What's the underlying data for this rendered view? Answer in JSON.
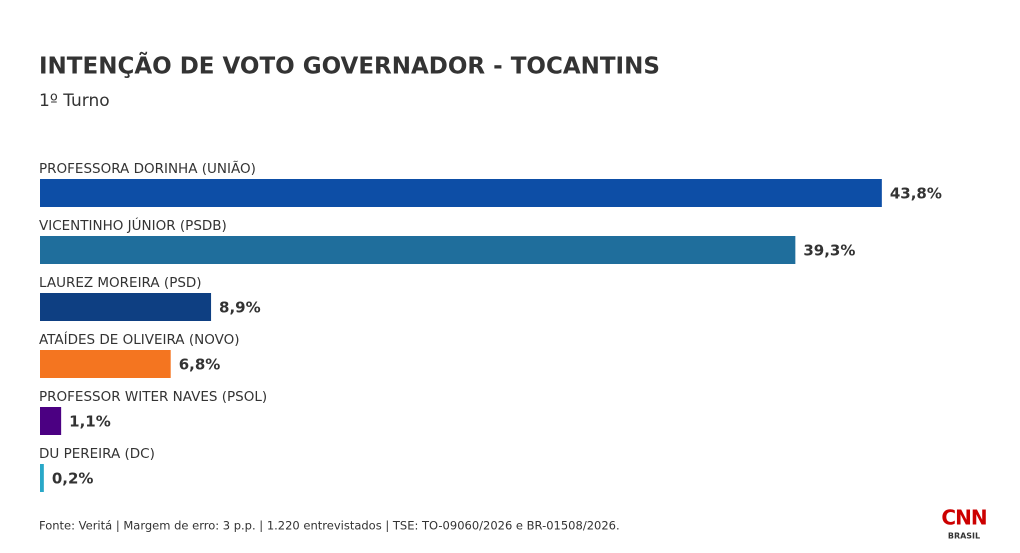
{
  "chart_data": {
    "type": "bar",
    "orientation": "horizontal",
    "title": "INTENÇÃO DE VOTO GOVERNADOR - TOCANTINS",
    "subtitle": "1º Turno",
    "categories": [
      "PROFESSORA DORINHA (UNIÃO)",
      "VICENTINHO JÚNIOR (PSDB)",
      "LAUREZ MOREIRA (PSD)",
      "ATAÍDES DE OLIVEIRA (NOVO)",
      "PROFESSOR WITER NAVES (PSOL)",
      "DU PEREIRA (DC)"
    ],
    "values": [
      43.8,
      39.3,
      8.9,
      6.8,
      1.1,
      0.2
    ],
    "value_labels": [
      "43,8%",
      "39,3%",
      "8,9%",
      "6,8%",
      "1,1%",
      "0,2%"
    ],
    "colors": [
      "#0d4ea6",
      "#1f6e9c",
      "#0e3f82",
      "#f47520",
      "#4b0082",
      "#29a8c8"
    ],
    "source": "Fonte: Veritá | Margem de erro: 3 p.p. | 1.220 entrevistados | TSE: TO-09060/2026 e BR-01508/2026."
  },
  "branding": {
    "logo": "CNN",
    "sublogo": "BRASIL"
  }
}
